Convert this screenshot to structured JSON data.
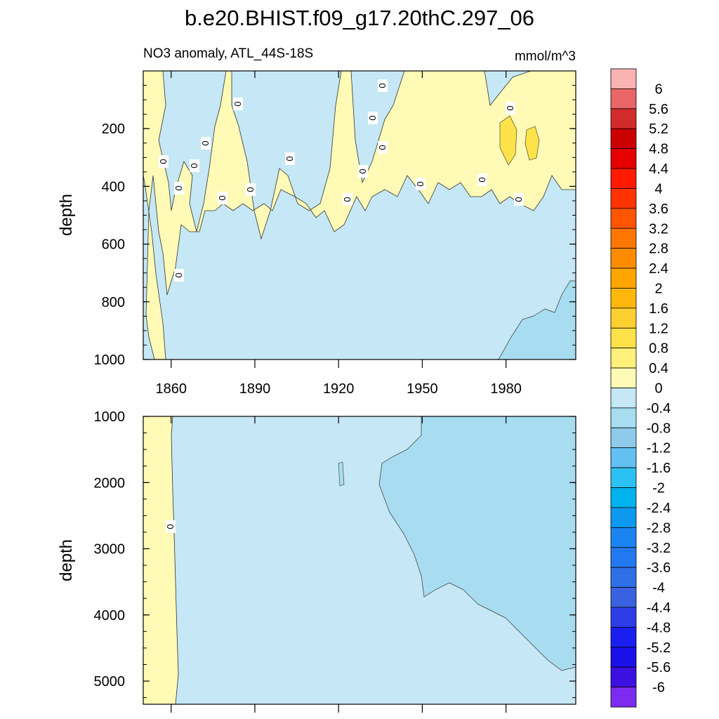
{
  "chart_data": {
    "type": "heatmap",
    "title": "b.e20.BHIST.f09_g17.20thC.297_06",
    "subtitle_left": "NO3 anomaly, ATL_44S-18S",
    "subtitle_right": "mmol/m^3",
    "xlabel": "",
    "ylabel": "depth",
    "x_ticks": [
      1860,
      1890,
      1920,
      1950,
      1980
    ],
    "xlim": [
      1850,
      2005
    ],
    "panels": [
      {
        "name": "upper",
        "ylim": [
          0,
          1000
        ],
        "y_ticks": [
          200,
          400,
          600,
          800,
          1000
        ],
        "ylabel": "depth"
      },
      {
        "name": "lower",
        "ylim": [
          1000,
          5350
        ],
        "y_ticks": [
          1000,
          2000,
          3000,
          4000,
          5000
        ],
        "ylabel": "depth"
      }
    ],
    "contour_label": "0",
    "colorbar": {
      "labels": [
        "6",
        "5.6",
        "5.2",
        "4.8",
        "4.4",
        "4",
        "3.6",
        "3.2",
        "2.8",
        "2.4",
        "2",
        "1.6",
        "1.2",
        "0.8",
        "0.4",
        "0",
        "-0.4",
        "-0.8",
        "-1.2",
        "-1.6",
        "-2",
        "-2.4",
        "-2.8",
        "-3.2",
        "-3.6",
        "-4",
        "-4.4",
        "-4.8",
        "-5.2",
        "-5.6",
        "-6"
      ],
      "colors": [
        "#f9b3b3",
        "#e86666",
        "#d22b2b",
        "#cc0000",
        "#e60000",
        "#ff1a00",
        "#ff3300",
        "#ff5500",
        "#ff7700",
        "#ff8c00",
        "#ffa500",
        "#ffb70d",
        "#fdd032",
        "#fde24a",
        "#fef07a",
        "#fffab5",
        "#c6e7f5",
        "#a8dcf0",
        "#8ecbea",
        "#62c1f0",
        "#2bc1f2",
        "#00b2ee",
        "#0d9aee",
        "#1a85f0",
        "#2278ee",
        "#2f6fe8",
        "#3a62e0",
        "#2d3ee8",
        "#1a1ef0",
        "#1a10e8",
        "#3b10e0",
        "#7c2bef"
      ]
    }
  }
}
